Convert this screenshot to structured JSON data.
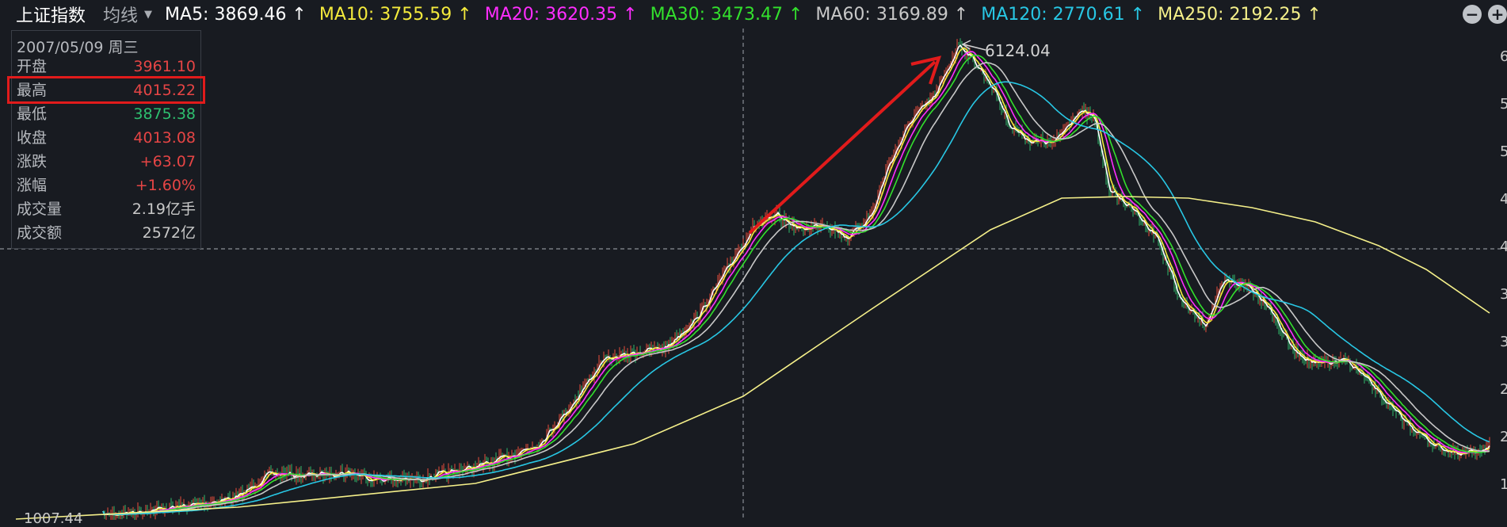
{
  "header": {
    "title": "上证指数",
    "mode_label": "均线",
    "ma": [
      {
        "label": "MA5: 3869.46 ↑",
        "color": "#ffffff"
      },
      {
        "label": "MA10: 3755.59 ↑",
        "color": "#f4ea3c"
      },
      {
        "label": "MA20: 3620.35 ↑",
        "color": "#ff2dff"
      },
      {
        "label": "MA30: 3473.47 ↑",
        "color": "#33e02d"
      },
      {
        "label": "MA60: 3169.89 ↑",
        "color": "#c8c8c8"
      },
      {
        "label": "MA120: 2770.61 ↑",
        "color": "#28c7e4"
      },
      {
        "label": "MA250: 2192.25 ↑",
        "color": "#f5f08a"
      }
    ],
    "zoom_out": "−",
    "zoom_in": "+"
  },
  "info": {
    "date": "2007/05/09 周三",
    "rows": [
      {
        "label": "开盘",
        "value": "3961.10",
        "color": "#e64545"
      },
      {
        "label": "最高",
        "value": "4015.22",
        "color": "#e64545"
      },
      {
        "label": "最低",
        "value": "3875.38",
        "color": "#2ebf6f"
      },
      {
        "label": "收盘",
        "value": "4013.08",
        "color": "#e64545"
      },
      {
        "label": "涨跌",
        "value": "+63.07",
        "color": "#e64545"
      },
      {
        "label": "涨幅",
        "value": "+1.60%",
        "color": "#e64545"
      },
      {
        "label": "成交量",
        "value": "2.19亿手",
        "color": "#c8c8c8"
      },
      {
        "label": "成交额",
        "value": "2572亿",
        "color": "#c8c8c8"
      }
    ]
  },
  "annotations": {
    "peak": "6124.04",
    "bottom_left": "1007.44"
  },
  "chart_data": {
    "type": "line",
    "title": "上证指数",
    "crosshair_date": "2007/05/09",
    "crosshair_value": 4013.08,
    "highlight": {
      "label": "最高",
      "value": 4015.22
    },
    "peak": 6124.04,
    "low": 1007.44,
    "y_axis_tick_digits": [
      "6",
      "5",
      "5",
      "4",
      "4",
      "3",
      "3",
      "2",
      "2",
      "1"
    ],
    "series": [
      {
        "name": "MA5",
        "color": "#ffffff",
        "last": 3869.46
      },
      {
        "name": "MA10",
        "color": "#f4ea3c",
        "last": 3755.59
      },
      {
        "name": "MA20",
        "color": "#ff2dff",
        "last": 3620.35
      },
      {
        "name": "MA30",
        "color": "#33e02d",
        "last": 3473.47
      },
      {
        "name": "MA60",
        "color": "#c8c8c8",
        "last": 3169.89
      },
      {
        "name": "MA120",
        "color": "#28c7e4",
        "last": 2770.61
      },
      {
        "name": "MA250",
        "color": "#f5f08a",
        "last": 2192.25
      }
    ],
    "grid": false
  }
}
